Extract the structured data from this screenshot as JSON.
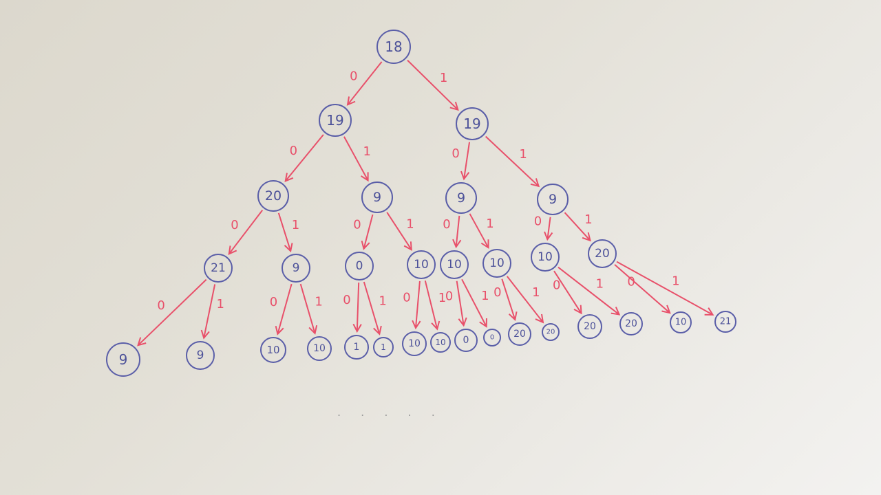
{
  "tree": {
    "root": "18",
    "level1": [
      "19",
      "19"
    ],
    "level2": [
      "20",
      "9",
      "9",
      "9"
    ],
    "level3": [
      "21",
      "9",
      "0",
      "10",
      "10",
      "10",
      "10",
      "20"
    ],
    "level4": [
      "9",
      "9",
      "10",
      "10",
      "1",
      "1",
      "10",
      "10",
      "0",
      "0",
      "20",
      "20",
      "20",
      "20",
      "10",
      "21"
    ],
    "edge_labels": {
      "left": "0",
      "right": "1"
    },
    "continuation": ". . . . ."
  }
}
